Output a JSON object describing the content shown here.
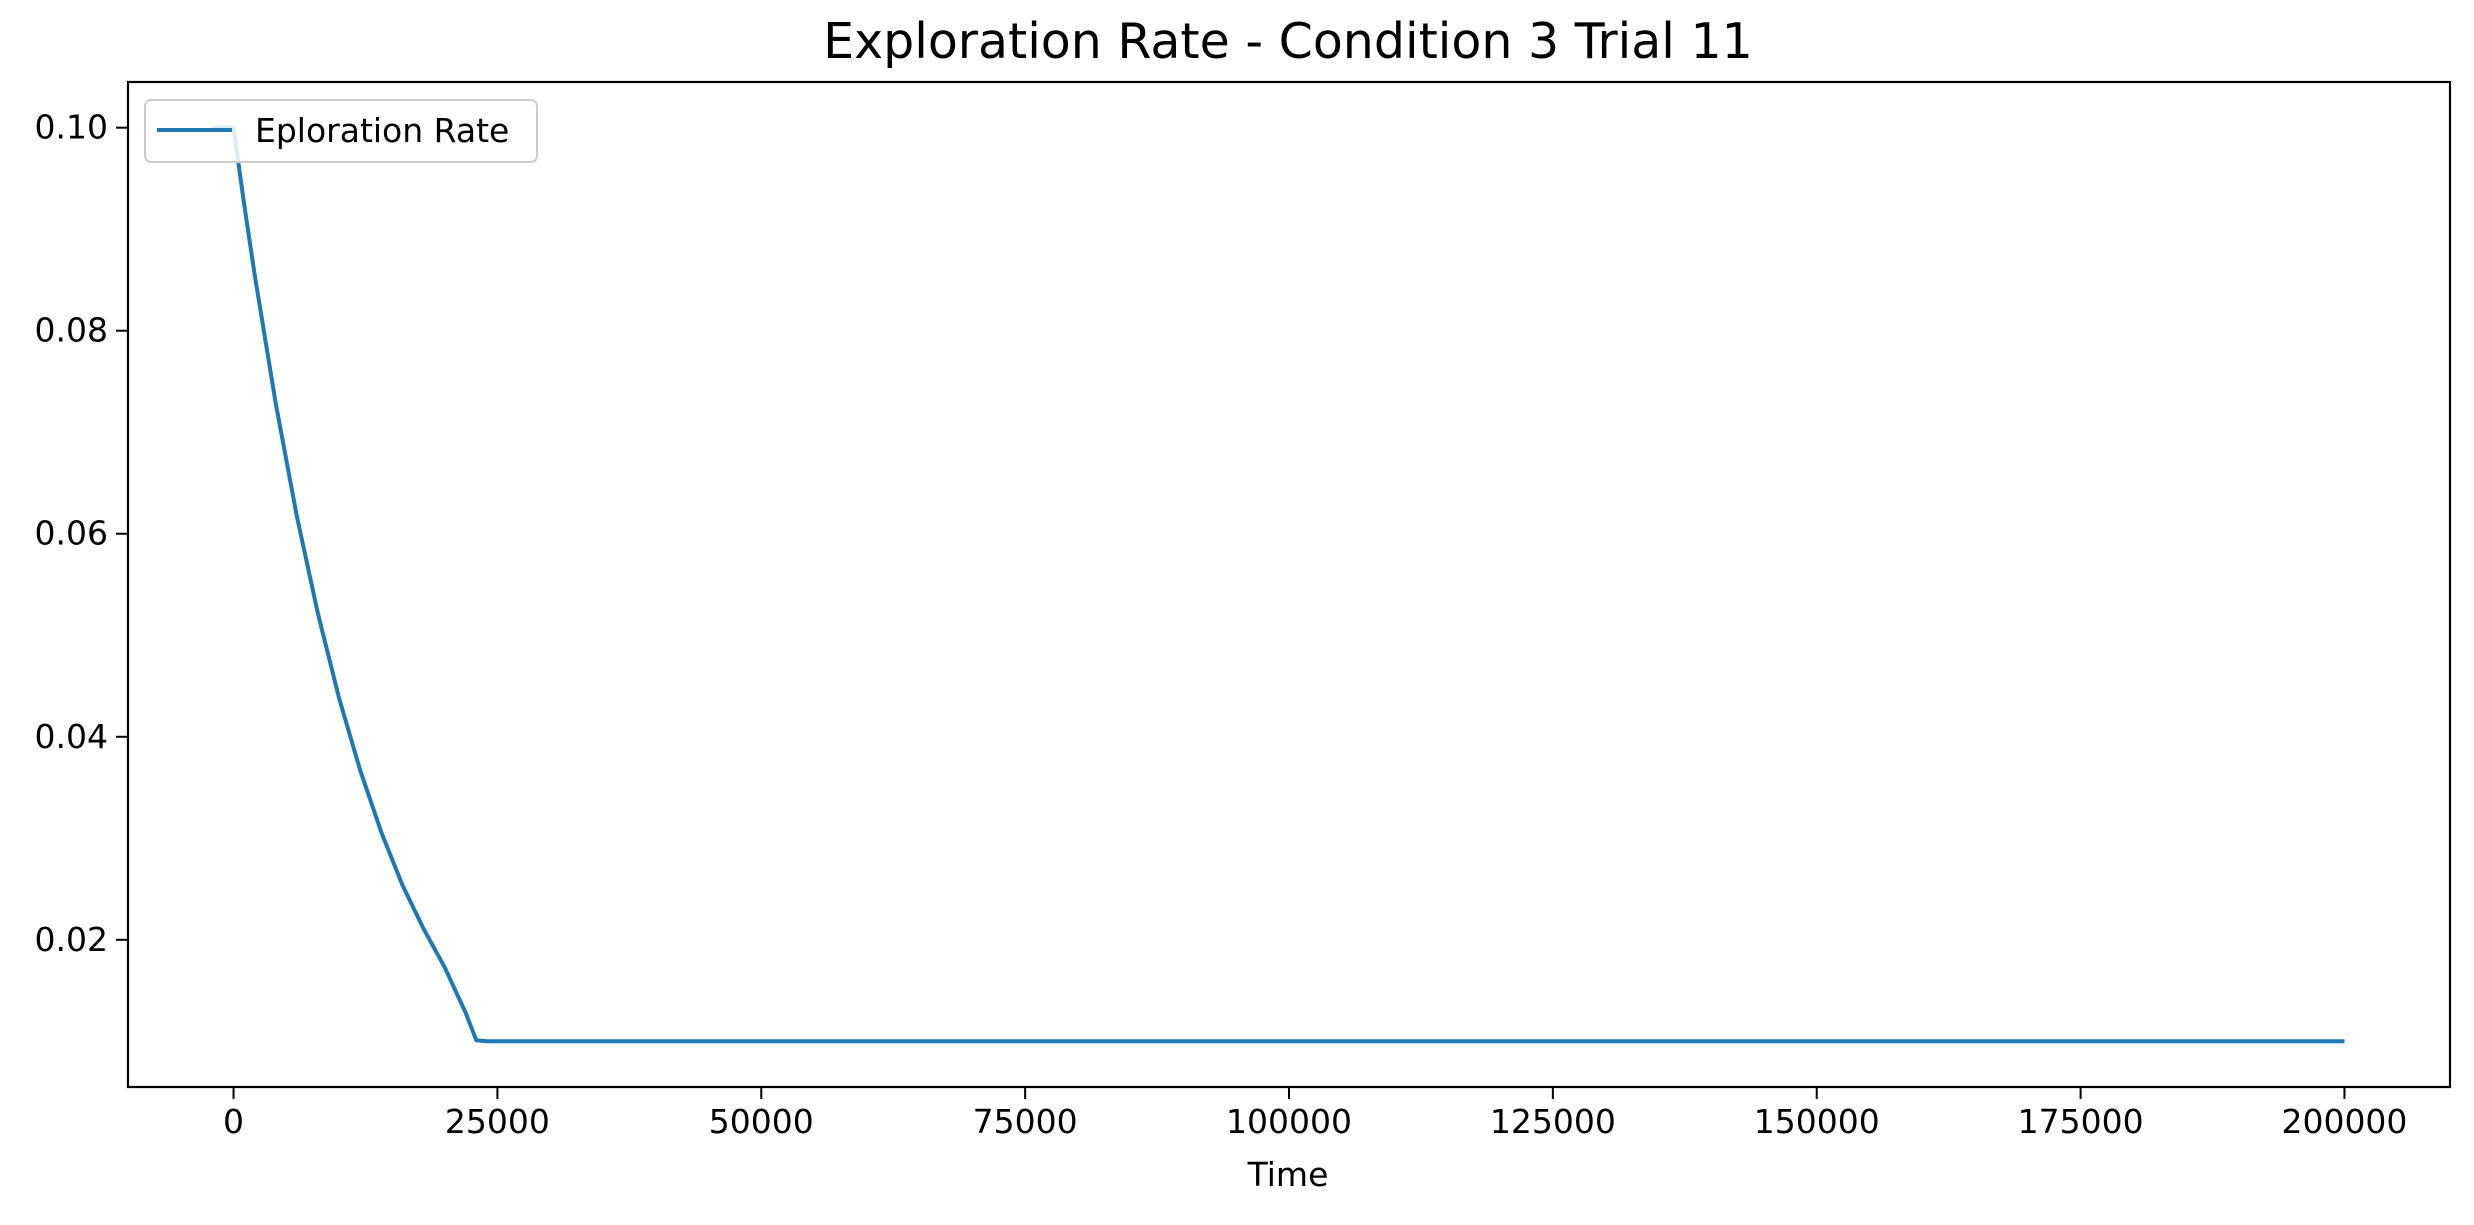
{
  "chart_data": {
    "type": "line",
    "title": "Exploration Rate - Condition 3 Trial 11",
    "xlabel": "Time",
    "ylabel": "",
    "xlim": [
      -10000,
      210000
    ],
    "ylim": [
      0.0055,
      0.1045
    ],
    "x_ticks": [
      0,
      25000,
      50000,
      75000,
      100000,
      125000,
      150000,
      175000,
      200000
    ],
    "x_tick_labels": [
      "0",
      "25000",
      "50000",
      "75000",
      "100000",
      "125000",
      "150000",
      "175000",
      "200000"
    ],
    "y_ticks": [
      0.02,
      0.04,
      0.06,
      0.08,
      0.1
    ],
    "y_tick_labels": [
      "0.02",
      "0.04",
      "0.06",
      "0.08",
      "0.10"
    ],
    "grid": false,
    "legend_position": "upper-left",
    "series": [
      {
        "name": "Eploration Rate",
        "color": "#1f77b4",
        "x": [
          -2000,
          0,
          1000,
          2000,
          4000,
          6000,
          8000,
          10000,
          12000,
          14000,
          16000,
          18000,
          20000,
          22000,
          23000,
          24000,
          50000,
          100000,
          150000,
          200000
        ],
        "y": [
          0.1,
          0.1,
          0.0925,
          0.0855,
          0.0728,
          0.0617,
          0.0521,
          0.0438,
          0.0367,
          0.0306,
          0.0254,
          0.0211,
          0.0173,
          0.0128,
          0.0101,
          0.01,
          0.01,
          0.01,
          0.01,
          0.01
        ]
      }
    ]
  }
}
